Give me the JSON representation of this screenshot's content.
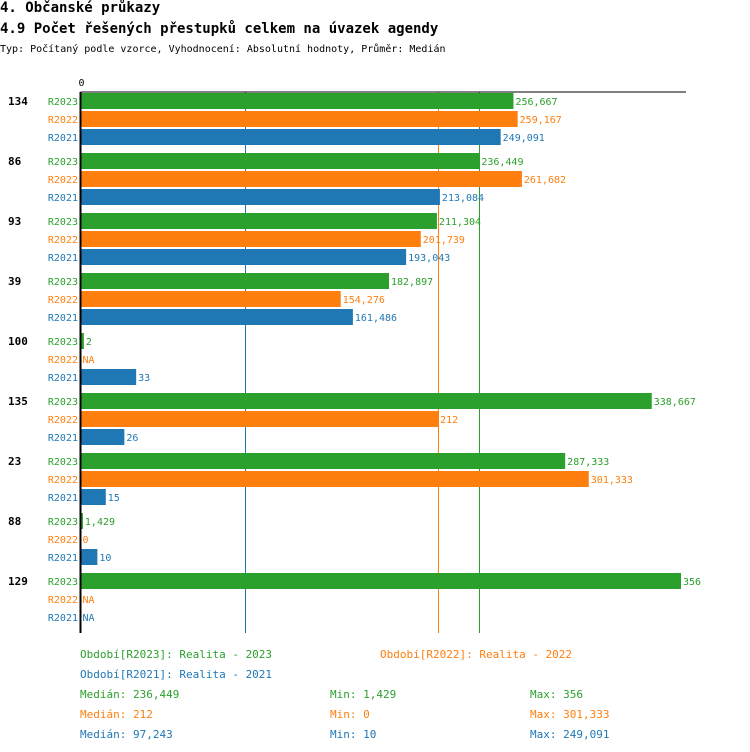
{
  "header": {
    "title": "4. Občanské průkazy",
    "subtitle": "4.9 Počet řešených přestupků celkem na úvazek agendy",
    "meta": "Typ: Počítaný podle vzorce, Vyhodnocení: Absolutní hodnoty, Průměr: Medián"
  },
  "colors": {
    "R2023": "#2ca02c",
    "R2022": "#ff7f0e",
    "R2021": "#1f77b4"
  },
  "chart_data": {
    "type": "bar",
    "orientation": "horizontal",
    "title": "4.9 Počet řešených přestupků celkem na úvazek agendy",
    "x_axis_origin_label": "0",
    "xlim": [
      0,
      356
    ],
    "categories": [
      "134",
      "86",
      "93",
      "39",
      "100",
      "135",
      "23",
      "88",
      "129"
    ],
    "series": [
      {
        "name": "R2023",
        "values": [
          256.667,
          236.449,
          211.304,
          182.897,
          2,
          338.667,
          287.333,
          1.429,
          356
        ],
        "labels": [
          "256,667",
          "236,449",
          "211,304",
          "182,897",
          "2",
          "338,667",
          "287,333",
          "1,429",
          "356"
        ]
      },
      {
        "name": "R2022",
        "values": [
          259.167,
          261.682,
          201.739,
          154.276,
          null,
          212,
          301.333,
          0,
          null
        ],
        "labels": [
          "259,167",
          "261,682",
          "201,739",
          "154,276",
          "NA",
          "212",
          "301,333",
          "0",
          "NA"
        ]
      },
      {
        "name": "R2021",
        "values": [
          249.091,
          213.084,
          193.043,
          161.486,
          33,
          26,
          15,
          10,
          null
        ],
        "labels": [
          "249,091",
          "213,084",
          "193,043",
          "161,486",
          "33",
          "26",
          "15",
          "10",
          "NA"
        ]
      }
    ],
    "reference_lines": [
      {
        "series": "R2023",
        "value": 236.449
      },
      {
        "series": "R2022",
        "value": 212
      },
      {
        "series": "R2021",
        "value": 97.243
      }
    ]
  },
  "legend": {
    "period_2023": "Období[R2023]: Realita - 2023",
    "period_2022": "Období[R2022]: Realita - 2022",
    "period_2021": "Období[R2021]: Realita - 2021",
    "stats": [
      {
        "series": "R2023",
        "median": "Medián: 236,449",
        "min": "Min: 1,429",
        "max": "Max: 356"
      },
      {
        "series": "R2022",
        "median": "Medián: 212",
        "min": "Min: 0",
        "max": "Max: 301,333"
      },
      {
        "series": "R2021",
        "median": "Medián: 97,243",
        "min": "Min: 10",
        "max": "Max: 249,091"
      }
    ]
  }
}
